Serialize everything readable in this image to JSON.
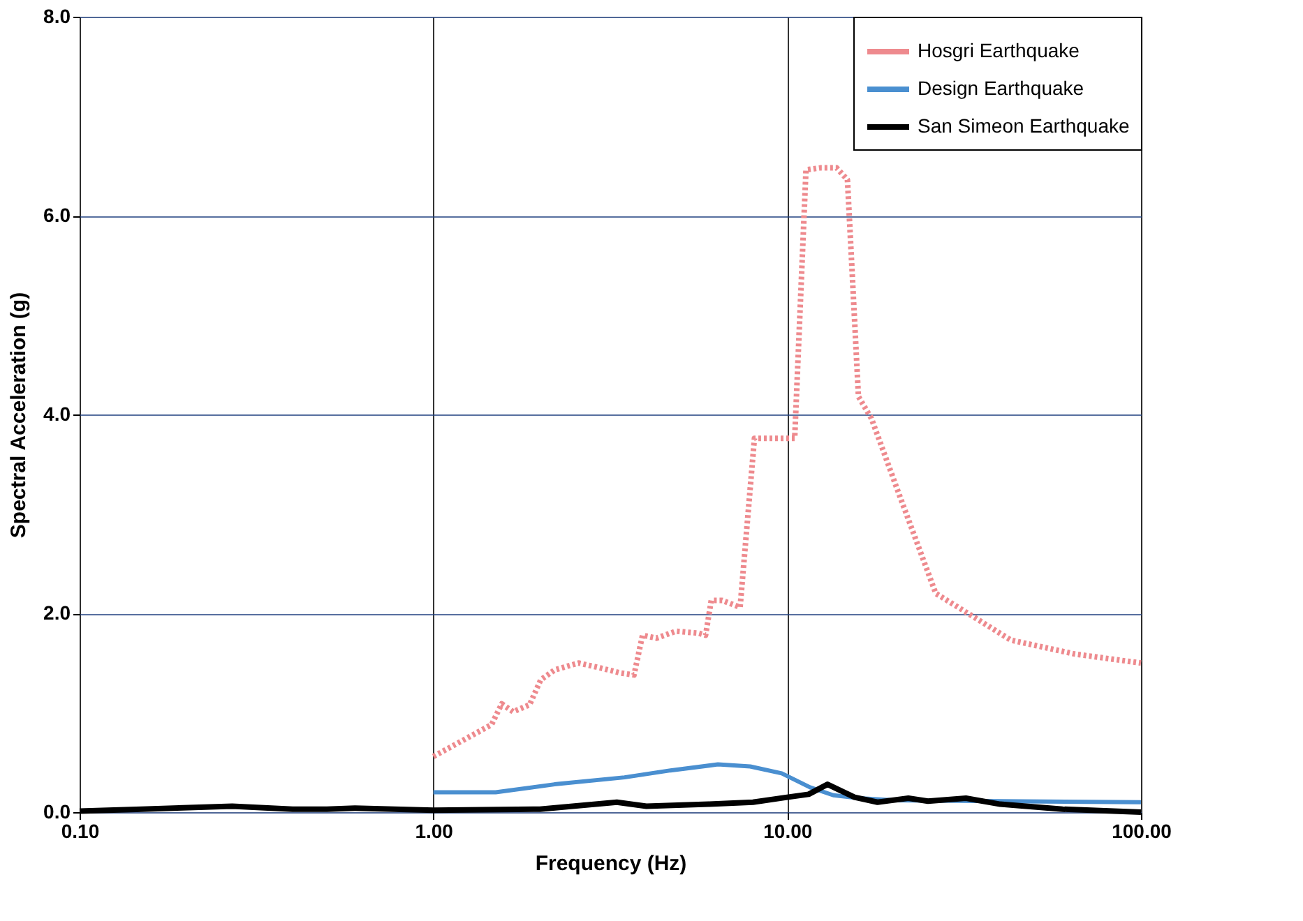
{
  "chart_data": {
    "type": "line",
    "xlabel": "Frequency (Hz)",
    "ylabel": "Spectral Acceleration (g)",
    "log": "x",
    "grid": true,
    "legend": "top right",
    "xlim": [
      0.1,
      100
    ],
    "xticks": [
      {
        "value": 0.1,
        "label": "0.10"
      },
      {
        "value": 1,
        "label": "1.00"
      },
      {
        "value": 10,
        "label": "10.00"
      },
      {
        "value": 100,
        "label": "100.00"
      }
    ],
    "ylim": [
      0,
      8
    ],
    "yticks": [
      {
        "value": 0,
        "label": "0.0"
      },
      {
        "value": 2,
        "label": "2.0"
      },
      {
        "value": 4,
        "label": "4.0"
      },
      {
        "value": 6,
        "label": "6.0"
      },
      {
        "value": 8,
        "label": "8.0"
      }
    ],
    "series": [
      {
        "name": "Hosgri Earthquake",
        "color": "#ee8a8e",
        "line_style": "dotted",
        "x": [
          1.0,
          1.46,
          1.56,
          1.68,
          1.87,
          2.01,
          2.2,
          2.57,
          2.97,
          3.37,
          3.69,
          3.9,
          4.27,
          4.85,
          5.62,
          5.88,
          6.1,
          6.55,
          7.36,
          8.08,
          10.5,
          11.3,
          12.4,
          13.8,
          14.8,
          15.9,
          17.3,
          20.7,
          26.3,
          34.5,
          42.9,
          65.1,
          100
        ],
        "values": [
          0.56,
          0.88,
          1.09,
          1.01,
          1.08,
          1.33,
          1.43,
          1.5,
          1.45,
          1.4,
          1.38,
          1.78,
          1.75,
          1.82,
          1.8,
          1.78,
          2.13,
          2.13,
          2.06,
          3.76,
          3.76,
          6.46,
          6.48,
          6.48,
          6.36,
          4.18,
          3.96,
          3.2,
          2.2,
          1.94,
          1.73,
          1.59,
          1.5
        ]
      },
      {
        "name": "Design Earthquake",
        "color": "#4a8fd0",
        "line_style": "solid",
        "x": [
          1.0,
          1.5,
          2.2,
          3.47,
          4.68,
          6.37,
          7.86,
          9.65,
          11.6,
          13.5,
          16,
          20,
          40,
          100
        ],
        "values": [
          0.2,
          0.2,
          0.28,
          0.35,
          0.42,
          0.48,
          0.46,
          0.39,
          0.25,
          0.17,
          0.14,
          0.12,
          0.11,
          0.1
        ]
      },
      {
        "name": "San Simeon Earthquake",
        "color": "#000000",
        "line_style": "solid",
        "x": [
          0.1,
          0.15,
          0.27,
          0.4,
          0.5,
          0.6,
          1.0,
          2.0,
          3.3,
          4.0,
          6.0,
          8.0,
          10.0,
          11.5,
          13.0,
          15.5,
          18,
          22,
          25,
          32,
          40,
          60,
          100
        ],
        "values": [
          0.01,
          0.03,
          0.06,
          0.03,
          0.03,
          0.04,
          0.02,
          0.03,
          0.1,
          0.06,
          0.08,
          0.1,
          0.15,
          0.18,
          0.28,
          0.15,
          0.1,
          0.14,
          0.11,
          0.14,
          0.08,
          0.03,
          0.0
        ]
      }
    ]
  }
}
